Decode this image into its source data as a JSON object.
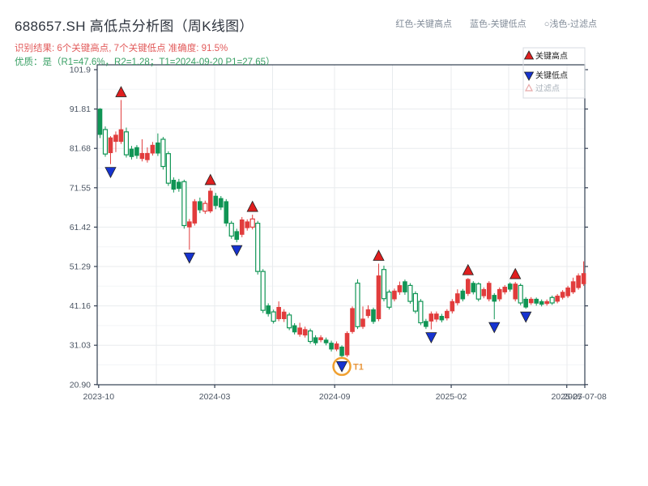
{
  "header": {
    "title": "688657.SH 高低点分析图（周K线图）",
    "result_line": "识别结果: 6个关键高点, 7个关键低点  准确度: 91.5%",
    "quality_line": "优质：是（R1=47.6%，R2=1.28；T1=2024-09-20 P1=27.65）",
    "legend_hint": [
      "红色-关键高点",
      "蓝色-关键低点",
      "○浅色-过滤点"
    ]
  },
  "legend": {
    "items": [
      {
        "label": "关键高点",
        "marker": "up-triangle",
        "color": "#e01f1f",
        "text_color": "#222222"
      },
      {
        "label": "关键低点",
        "marker": "down-triangle",
        "color": "#1633d0",
        "text_color": "#222222"
      },
      {
        "label": "过滤点",
        "marker": "up-triangle-outline",
        "color": "#e8a8a8",
        "text_color": "#aab2bb"
      }
    ]
  },
  "colors": {
    "up_candle": "#e13c3c",
    "down_candle": "#109555",
    "key_high_marker": "#e01f1f",
    "key_low_marker": "#1633d0",
    "marker_edge": "#222222",
    "t1_ring": "#f0a030",
    "t1_text": "#e8963c",
    "spine": "#333f52",
    "tick_label": "#4b5563",
    "grid_major": "#e8ebee",
    "grid_minor": "#f3f5f7"
  },
  "chart_data": {
    "type": "candlestick",
    "title": "688657.SH 高低点分析图（周K线图）",
    "ylim": [
      20.9,
      101.9
    ],
    "y_ticks": [
      "101.9",
      "91.81",
      "81.68",
      "71.55",
      "61.42",
      "51.29",
      "41.16",
      "31.03",
      "20.90"
    ],
    "x_ticks": [
      {
        "label": "2023-10",
        "pos": 0.003
      },
      {
        "label": "2024-03",
        "pos": 0.241
      },
      {
        "label": "2024-09",
        "pos": 0.487
      },
      {
        "label": "2025-02",
        "pos": 0.726
      },
      {
        "label": "2025-07",
        "pos": 0.963
      },
      {
        "label": "2025-07-08",
        "pos": 1.0
      }
    ],
    "candles": [
      [
        91.8,
        85.2,
        84.3,
        92.0,
        0
      ],
      [
        86.5,
        80.2,
        79.5,
        87.3,
        1
      ],
      [
        80.5,
        84.4,
        77.6,
        84.8,
        0
      ],
      [
        83.4,
        85.1,
        80.7,
        86.0,
        0
      ],
      [
        83.4,
        86.5,
        82.8,
        94.1,
        0
      ],
      [
        85.9,
        80.0,
        79.3,
        87.0,
        1
      ],
      [
        81.5,
        79.5,
        78.8,
        82.3,
        0
      ],
      [
        81.9,
        79.8,
        79.0,
        82.5,
        0
      ],
      [
        79.0,
        80.4,
        78.3,
        84.0,
        0
      ],
      [
        78.7,
        80.4,
        78.0,
        81.9,
        0
      ],
      [
        80.4,
        82.5,
        79.8,
        83.3,
        0
      ],
      [
        83.1,
        80.4,
        79.7,
        85.5,
        0
      ],
      [
        84.0,
        77.0,
        76.2,
        84.6,
        1
      ],
      [
        80.3,
        72.7,
        72.0,
        80.9,
        1
      ],
      [
        73.5,
        71.1,
        70.3,
        74.2,
        0
      ],
      [
        73.0,
        71.3,
        70.5,
        73.8,
        0
      ],
      [
        73.1,
        61.8,
        61.0,
        73.6,
        1
      ],
      [
        61.4,
        62.8,
        55.6,
        63.5,
        0
      ],
      [
        62.4,
        68.0,
        61.8,
        68.6,
        0
      ],
      [
        68.0,
        65.8,
        65.0,
        69.0,
        0
      ],
      [
        65.5,
        67.5,
        64.8,
        68.2,
        1
      ],
      [
        65.5,
        70.7,
        65.0,
        71.5,
        0
      ],
      [
        69.4,
        66.9,
        66.0,
        70.2,
        0
      ],
      [
        68.8,
        66.5,
        65.8,
        69.4,
        0
      ],
      [
        68.0,
        62.4,
        61.6,
        68.6,
        0
      ],
      [
        62.4,
        59.1,
        58.4,
        63.0,
        1
      ],
      [
        60.3,
        58.2,
        57.5,
        61.0,
        0
      ],
      [
        59.5,
        63.3,
        58.8,
        64.0,
        0
      ],
      [
        61.2,
        62.8,
        60.5,
        63.4,
        0
      ],
      [
        61.4,
        63.5,
        60.8,
        64.6,
        1
      ],
      [
        62.4,
        50.0,
        49.2,
        63.0,
        1
      ],
      [
        50.0,
        40.0,
        39.3,
        50.6,
        1
      ],
      [
        41.2,
        39.1,
        38.4,
        41.8,
        0
      ],
      [
        39.6,
        37.2,
        36.6,
        40.2,
        1
      ],
      [
        37.8,
        40.8,
        37.2,
        42.3,
        0
      ],
      [
        37.8,
        39.6,
        37.0,
        40.3,
        0
      ],
      [
        38.8,
        35.5,
        34.9,
        39.4,
        1
      ],
      [
        36.1,
        34.4,
        33.8,
        36.7,
        0
      ],
      [
        33.8,
        35.5,
        33.2,
        36.8,
        0
      ],
      [
        33.6,
        35.1,
        33.0,
        35.8,
        0
      ],
      [
        34.7,
        32.0,
        31.4,
        35.3,
        1
      ],
      [
        33.0,
        31.6,
        31.0,
        33.6,
        0
      ],
      [
        32.4,
        33.0,
        31.8,
        33.6,
        0
      ],
      [
        32.4,
        31.6,
        31.0,
        33.0,
        0
      ],
      [
        31.6,
        30.0,
        29.4,
        32.2,
        0
      ],
      [
        30.0,
        31.4,
        29.5,
        32.0,
        0
      ],
      [
        30.6,
        28.3,
        27.65,
        31.0,
        0
      ],
      [
        28.5,
        34.1,
        28.0,
        34.6,
        0
      ],
      [
        34.5,
        40.5,
        34.0,
        41.0,
        0
      ],
      [
        47.0,
        35.8,
        35.2,
        48.0,
        1
      ],
      [
        35.8,
        37.8,
        35.2,
        41.0,
        0
      ],
      [
        38.6,
        40.2,
        38.0,
        41.3,
        0
      ],
      [
        40.2,
        37.1,
        36.5,
        40.7,
        0
      ],
      [
        37.8,
        48.9,
        37.2,
        52.0,
        0
      ],
      [
        50.5,
        43.0,
        42.3,
        51.5,
        1
      ],
      [
        44.7,
        40.8,
        40.2,
        45.3,
        1
      ],
      [
        42.9,
        45.0,
        42.3,
        45.6,
        0
      ],
      [
        44.7,
        46.4,
        44.0,
        47.4,
        0
      ],
      [
        47.4,
        44.7,
        44.0,
        47.9,
        0
      ],
      [
        46.4,
        42.3,
        41.7,
        47.0,
        1
      ],
      [
        44.3,
        39.8,
        39.2,
        44.9,
        1
      ],
      [
        42.3,
        36.8,
        36.2,
        42.9,
        1
      ],
      [
        37.2,
        35.8,
        35.2,
        37.8,
        0
      ],
      [
        37.2,
        39.1,
        35.1,
        39.7,
        0
      ],
      [
        37.7,
        39.1,
        37.0,
        39.7,
        0
      ],
      [
        38.5,
        37.5,
        36.9,
        39.1,
        0
      ],
      [
        38.0,
        39.8,
        37.4,
        40.3,
        0
      ],
      [
        39.8,
        42.3,
        39.2,
        42.9,
        0
      ],
      [
        41.9,
        44.3,
        41.3,
        45.4,
        0
      ],
      [
        45.0,
        42.9,
        42.3,
        45.5,
        0
      ],
      [
        44.3,
        48.0,
        43.7,
        48.3,
        0
      ],
      [
        47.0,
        44.7,
        44.1,
        47.5,
        0
      ],
      [
        46.8,
        42.9,
        42.3,
        47.2,
        1
      ],
      [
        43.7,
        45.4,
        43.1,
        45.9,
        0
      ],
      [
        42.9,
        47.0,
        42.3,
        47.5,
        0
      ],
      [
        43.9,
        42.3,
        37.7,
        44.4,
        0
      ],
      [
        42.9,
        45.4,
        42.3,
        45.9,
        0
      ],
      [
        44.7,
        46.0,
        44.1,
        46.5,
        0
      ],
      [
        46.8,
        45.4,
        44.8,
        47.2,
        0
      ],
      [
        42.9,
        46.8,
        42.3,
        47.3,
        0
      ],
      [
        46.4,
        41.9,
        41.3,
        46.9,
        1
      ],
      [
        42.9,
        40.8,
        40.4,
        43.4,
        0
      ],
      [
        41.9,
        42.9,
        41.4,
        43.4,
        0
      ],
      [
        42.9,
        41.8,
        41.2,
        43.3,
        0
      ],
      [
        42.3,
        41.5,
        41.0,
        42.8,
        0
      ],
      [
        41.7,
        42.3,
        41.2,
        42.8,
        0
      ],
      [
        43.3,
        41.9,
        41.4,
        43.8,
        1
      ],
      [
        42.3,
        43.7,
        41.8,
        44.2,
        0
      ],
      [
        43.3,
        44.7,
        42.8,
        45.2,
        0
      ],
      [
        43.7,
        45.8,
        43.2,
        46.3,
        0
      ],
      [
        44.7,
        47.4,
        44.2,
        48.4,
        0
      ],
      [
        45.8,
        48.9,
        45.3,
        49.5,
        0
      ],
      [
        46.8,
        49.5,
        46.3,
        52.6,
        0
      ]
    ],
    "key_highs": [
      {
        "index": 4,
        "price": 94.1
      },
      {
        "index": 21,
        "price": 71.5
      },
      {
        "index": 29,
        "price": 64.6
      },
      {
        "index": 53,
        "price": 52.0
      },
      {
        "index": 70,
        "price": 48.3
      },
      {
        "index": 79,
        "price": 47.3
      }
    ],
    "key_lows": [
      {
        "index": 2,
        "price": 77.6
      },
      {
        "index": 17,
        "price": 55.6
      },
      {
        "index": 26,
        "price": 57.5
      },
      {
        "index": 46,
        "price": 27.65
      },
      {
        "index": 63,
        "price": 35.1
      },
      {
        "index": 75,
        "price": 37.7
      },
      {
        "index": 81,
        "price": 40.4
      }
    ],
    "t1_annotation": {
      "index": 46,
      "label": "T1",
      "price": 27.65,
      "date": "2024-09-20"
    }
  }
}
